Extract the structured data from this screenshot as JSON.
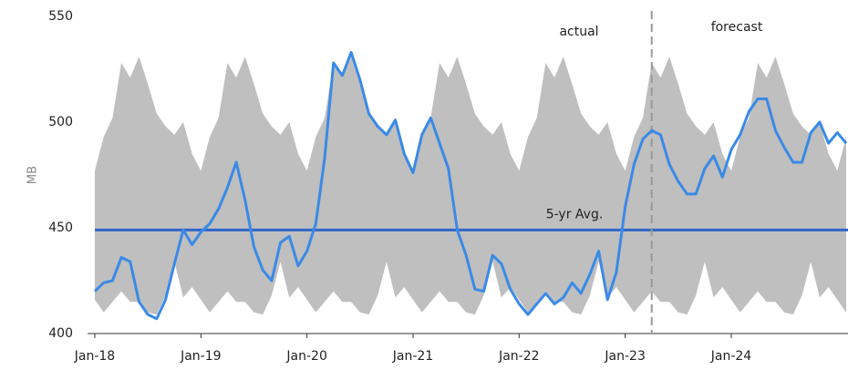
{
  "chart_data": {
    "type": "line",
    "y_label": "MB",
    "categories": [
      "Jan-18",
      null,
      null,
      null,
      null,
      null,
      null,
      null,
      null,
      null,
      null,
      null,
      "Jan-19",
      null,
      null,
      null,
      null,
      null,
      null,
      null,
      null,
      null,
      null,
      null,
      "Jan-20",
      null,
      null,
      null,
      null,
      null,
      null,
      null,
      null,
      null,
      null,
      null,
      "Jan-21",
      null,
      null,
      null,
      null,
      null,
      null,
      null,
      null,
      null,
      null,
      null,
      "Jan-22",
      null,
      null,
      null,
      null,
      null,
      null,
      null,
      null,
      null,
      null,
      null,
      "Jan-23",
      null,
      null,
      null,
      null,
      null,
      null,
      null,
      null,
      null,
      null,
      null,
      "Jan-24",
      null,
      null,
      null,
      null,
      null,
      null,
      null,
      null,
      null,
      null,
      null,
      null,
      null
    ],
    "values": [
      420,
      424,
      425,
      436,
      434,
      415,
      409,
      407,
      416,
      433,
      449,
      442,
      448,
      452,
      459,
      469,
      481,
      463,
      441,
      430,
      425,
      443,
      446,
      432,
      439,
      452,
      483,
      528,
      522,
      533,
      520,
      504,
      498,
      494,
      501,
      485,
      476,
      494,
      502,
      490,
      478,
      449,
      437,
      421,
      420,
      437,
      433,
      421,
      414,
      409,
      414,
      419,
      414,
      417,
      424,
      419,
      428,
      439,
      416,
      429,
      460,
      480,
      492,
      496,
      494,
      480,
      472,
      466,
      466,
      478,
      484,
      474,
      487,
      494,
      505,
      511,
      511,
      496,
      488,
      481,
      481,
      495,
      500,
      490,
      495,
      490
    ],
    "color": "#3a8ae6",
    "range_high": [
      477,
      493,
      502,
      528,
      521,
      531,
      518,
      504,
      498,
      494,
      500,
      485,
      477,
      493,
      502,
      528,
      521,
      531,
      518,
      504,
      498,
      494,
      500,
      485,
      477,
      493,
      502,
      528,
      521,
      531,
      518,
      504,
      498,
      494,
      500,
      485,
      477,
      493,
      502,
      528,
      521,
      531,
      518,
      504,
      498,
      494,
      500,
      485,
      477,
      493,
      502,
      528,
      521,
      531,
      518,
      504,
      498,
      494,
      500,
      485,
      477,
      493,
      502,
      528,
      521,
      531,
      518,
      504,
      498,
      494,
      500,
      485,
      477,
      493,
      502,
      528,
      521,
      531,
      518,
      504,
      498,
      494,
      500,
      485,
      477,
      493
    ],
    "range_low": [
      416,
      410,
      415,
      420,
      415,
      415,
      410,
      409,
      418,
      434,
      417,
      422,
      416,
      410,
      415,
      420,
      415,
      415,
      410,
      409,
      418,
      434,
      417,
      422,
      416,
      410,
      415,
      420,
      415,
      415,
      410,
      409,
      418,
      434,
      417,
      422,
      416,
      410,
      415,
      420,
      415,
      415,
      410,
      409,
      418,
      434,
      417,
      422,
      416,
      410,
      415,
      420,
      415,
      415,
      410,
      409,
      418,
      434,
      417,
      422,
      416,
      410,
      415,
      420,
      415,
      415,
      410,
      409,
      418,
      434,
      417,
      422,
      416,
      410,
      415,
      420,
      415,
      415,
      410,
      409,
      418,
      434,
      417,
      422,
      416,
      410
    ],
    "range_color": "#bfbfbf",
    "avg": 449,
    "avg_label": "5-yr Avg.",
    "avg_color": "#2f66c8",
    "divider_index": 63,
    "actual_label": "actual",
    "forecast_label": "forecast",
    "ylim": [
      400,
      550
    ],
    "yticks": [
      400,
      450,
      500,
      550
    ],
    "grid": false
  }
}
